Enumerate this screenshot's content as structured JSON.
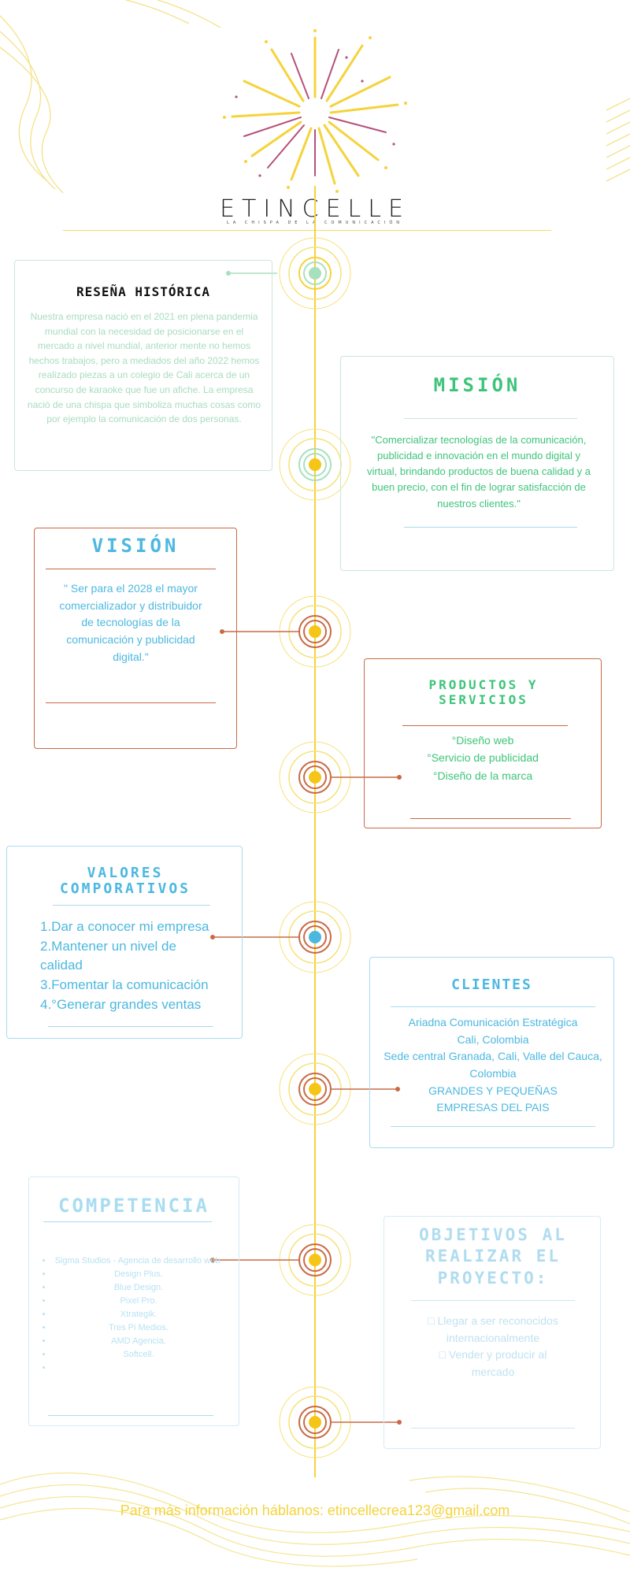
{
  "brand": {
    "name": "ETINCELLE",
    "tagline": "LA CHISPA DE LA COMUNICACIÓN"
  },
  "colors": {
    "yellow": "#f5d33b",
    "green": "#3ec47a",
    "blue": "#4cb8e0",
    "orange": "#c96a45",
    "lightblue": "#8ccfe6"
  },
  "resena": {
    "title": "RESEÑA HISTÓRICA",
    "text": "Nuestra empresa nació en el 2021 en plena pandemia mundial con la necesidad de posicionarse en el mercado a nivel mundial, anterior mente no hemos hechos trabajos, pero a mediados del año 2022 hemos realizado piezas a un colegio de Cali acerca de un concurso de karaoke que fue un afiche. La empresa nació de una chispa que simboliza muchas cosas como por ejemplo la comunicación de dos personas."
  },
  "mision": {
    "title": "MISIÓN",
    "text": "\"Comercializar tecnologías de la comunicación, publicidad e innovación en el mundo digital y virtual, brindando productos de buena calidad y a buen precio, con el fin de lograr satisfacción de nuestros clientes.\""
  },
  "vision": {
    "title": "VISIÓN",
    "text": "\" Ser para el 2028 el mayor comercializador y distribuidor de tecnologías de la comunicación y publicidad digital.\""
  },
  "productos": {
    "title": "PRODUCTOS Y SERVICIOS",
    "items": [
      "°Diseño web",
      "°Servicio de publicidad",
      "°Diseño de la marca"
    ]
  },
  "valores": {
    "title": "VALORES COMPORATIVOS",
    "items": [
      "1.Dar a conocer mi empresa",
      "2.Mantener un nivel de calidad",
      "3.Fomentar la comunicación",
      "4.°Generar grandes ventas"
    ]
  },
  "clientes": {
    "title": "CLIENTES",
    "lines": [
      "Ariadna Comunicación Estratégica",
      "Cali, Colombia",
      "Sede central Granada, Cali, Valle del Cauca, Colombia",
      "GRANDES Y PEQUEÑAS EMPRESAS DEL PAIS"
    ]
  },
  "competencia": {
    "title": "COMPETENCIA",
    "items": [
      "Sigma Studios - Agencia de desarrollo web.",
      "Design Plus.",
      "Blue Design.",
      "Pixel Pro.",
      "Xtrategik.",
      "Tres Pi Medios.",
      "AMD Agencia.",
      "Softcell.",
      ""
    ]
  },
  "objetivos": {
    "title": "OBJETIVOS AL REALIZAR EL PROYECTO:",
    "items": [
      "□ Llegar a ser reconocidos internacionalmente",
      "□ Vender y producir al mercado"
    ]
  },
  "footer": {
    "text": "Para más información háblanos: etincellecrea123@gmail.com"
  }
}
